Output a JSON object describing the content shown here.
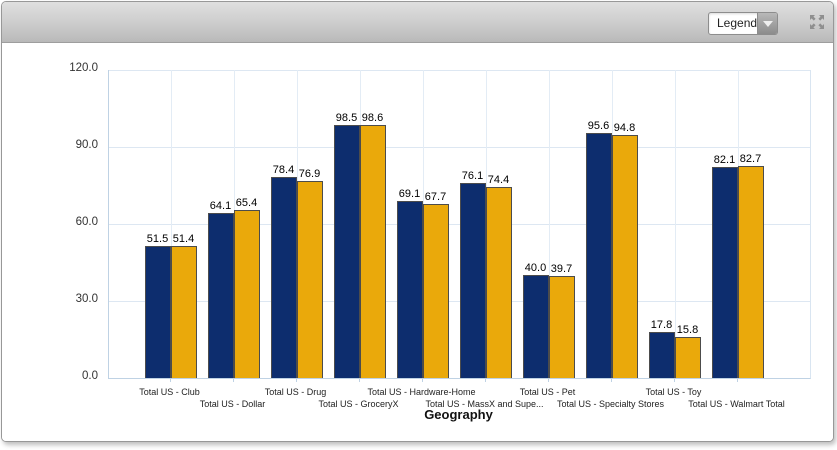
{
  "toolbar": {
    "legend_dropdown": {
      "selected": "Legend"
    }
  },
  "chart_data": {
    "type": "bar",
    "title": "",
    "xlabel": "Geography",
    "ylabel": "",
    "ylim": [
      0,
      120
    ],
    "yticks": [
      0.0,
      30.0,
      60.0,
      90.0,
      120.0
    ],
    "ytick_decimals": 1,
    "grid": true,
    "value_labels": true,
    "value_label_decimals": 1,
    "legend_position": "collapsed-in-toolbar-dropdown",
    "categories": [
      "Total US - Club",
      "Total US - Dollar",
      "Total US - Drug",
      "Total US - GroceryX",
      "Total US - Hardware-Home",
      "Total US - MassX and Supe...",
      "Total US - Pet",
      "Total US - Specialty Stores",
      "Total US - Toy",
      "Total US - Walmart Total"
    ],
    "series": [
      {
        "name": "series-navy",
        "color": "#0d2d6e",
        "values": [
          51.5,
          64.1,
          78.4,
          98.5,
          69.1,
          76.1,
          40.0,
          95.6,
          17.8,
          82.1
        ]
      },
      {
        "name": "series-gold",
        "color": "#eaa90b",
        "values": [
          51.4,
          65.4,
          76.9,
          98.6,
          67.7,
          74.4,
          39.7,
          94.8,
          15.8,
          82.7
        ]
      }
    ]
  },
  "colors": {
    "grid_line": "#dde7f2",
    "axis_line": "#bfd2e4",
    "bar_border": "#4c4c4c",
    "toolbar_icon": "#8f8f8f"
  }
}
